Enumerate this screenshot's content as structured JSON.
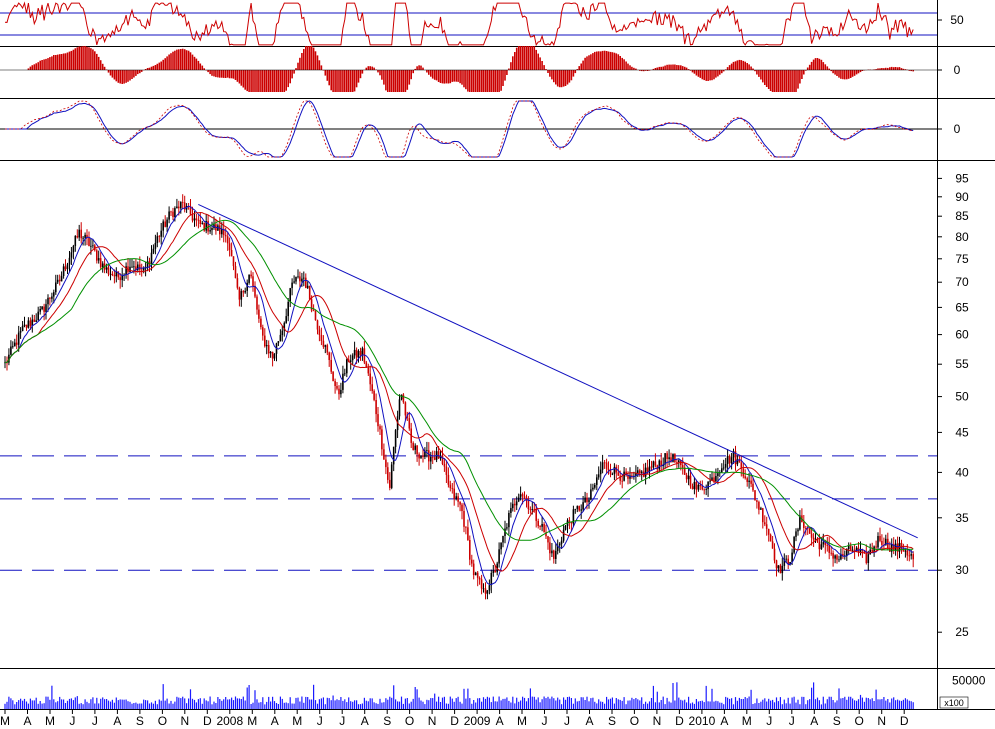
{
  "chart_data": {
    "type": "candlestick",
    "title": "",
    "x_labels": [
      "M",
      "A",
      "M",
      "J",
      "J",
      "A",
      "S",
      "O",
      "N",
      "D",
      "2008",
      "M",
      "A",
      "M",
      "J",
      "J",
      "A",
      "S",
      "O",
      "N",
      "D",
      "2009",
      "A",
      "M",
      "J",
      "J",
      "A",
      "S",
      "O",
      "N",
      "D",
      "2010",
      "A",
      "M",
      "J",
      "J",
      "A",
      "S",
      "O",
      "N",
      "D"
    ],
    "price_axis": {
      "scale": "log",
      "ticks": [
        25,
        30,
        35,
        40,
        45,
        50,
        55,
        60,
        65,
        70,
        75,
        80,
        85,
        90,
        95
      ],
      "range": [
        22.5,
        100
      ]
    },
    "oscillator_panels": [
      {
        "name": "",
        "ticks": [
          "50"
        ],
        "reference_lines": [
          60,
          40
        ],
        "range": [
          30,
          70
        ]
      },
      {
        "name": "",
        "ticks": [
          "0"
        ],
        "style": "histogram",
        "range": [
          -3,
          3
        ]
      },
      {
        "name": "",
        "ticks": [
          "0"
        ],
        "range": [
          -3,
          3
        ]
      }
    ],
    "volume_axis": {
      "ticks": [
        "50000"
      ],
      "multiplier_label": "x100",
      "range": [
        0,
        65000
      ]
    },
    "horizontal_levels": [
      42,
      37,
      30
    ],
    "trendline": {
      "from": {
        "label_index": 8.6,
        "price": 88
      },
      "to": {
        "label_index": 40.6,
        "price": 33
      }
    },
    "price_keypoints": [
      {
        "i": 0,
        "p": 55
      },
      {
        "i": 0.8,
        "p": 61
      },
      {
        "i": 1.6,
        "p": 64
      },
      {
        "i": 2.4,
        "p": 70
      },
      {
        "i": 3.3,
        "p": 81
      },
      {
        "i": 3.8,
        "p": 78
      },
      {
        "i": 4.4,
        "p": 73
      },
      {
        "i": 5.0,
        "p": 71
      },
      {
        "i": 5.6,
        "p": 74
      },
      {
        "i": 6.2,
        "p": 72
      },
      {
        "i": 6.8,
        "p": 80
      },
      {
        "i": 7.4,
        "p": 86
      },
      {
        "i": 7.9,
        "p": 88
      },
      {
        "i": 8.6,
        "p": 83
      },
      {
        "i": 9.4,
        "p": 82
      },
      {
        "i": 9.9,
        "p": 80
      },
      {
        "i": 10.4,
        "p": 66
      },
      {
        "i": 10.9,
        "p": 72
      },
      {
        "i": 11.4,
        "p": 60
      },
      {
        "i": 11.9,
        "p": 56
      },
      {
        "i": 12.4,
        "p": 62
      },
      {
        "i": 12.8,
        "p": 70
      },
      {
        "i": 13.3,
        "p": 71
      },
      {
        "i": 13.8,
        "p": 63
      },
      {
        "i": 14.3,
        "p": 57
      },
      {
        "i": 14.8,
        "p": 50
      },
      {
        "i": 15.3,
        "p": 56
      },
      {
        "i": 15.9,
        "p": 57
      },
      {
        "i": 16.5,
        "p": 48
      },
      {
        "i": 17.1,
        "p": 38
      },
      {
        "i": 17.6,
        "p": 51
      },
      {
        "i": 18.1,
        "p": 43
      },
      {
        "i": 18.6,
        "p": 42
      },
      {
        "i": 19.3,
        "p": 42
      },
      {
        "i": 19.8,
        "p": 38
      },
      {
        "i": 20.3,
        "p": 36
      },
      {
        "i": 20.8,
        "p": 30
      },
      {
        "i": 21.3,
        "p": 28
      },
      {
        "i": 21.8,
        "p": 30
      },
      {
        "i": 22.4,
        "p": 35
      },
      {
        "i": 22.9,
        "p": 38
      },
      {
        "i": 23.4,
        "p": 36
      },
      {
        "i": 23.9,
        "p": 34
      },
      {
        "i": 24.4,
        "p": 31
      },
      {
        "i": 24.9,
        "p": 34
      },
      {
        "i": 25.5,
        "p": 36
      },
      {
        "i": 26.0,
        "p": 37
      },
      {
        "i": 26.6,
        "p": 41
      },
      {
        "i": 27.2,
        "p": 40
      },
      {
        "i": 27.8,
        "p": 39
      },
      {
        "i": 28.4,
        "p": 40
      },
      {
        "i": 29.0,
        "p": 41
      },
      {
        "i": 29.6,
        "p": 42
      },
      {
        "i": 30.2,
        "p": 40
      },
      {
        "i": 30.8,
        "p": 38
      },
      {
        "i": 31.4,
        "p": 39
      },
      {
        "i": 31.9,
        "p": 41
      },
      {
        "i": 32.4,
        "p": 42
      },
      {
        "i": 32.9,
        "p": 40
      },
      {
        "i": 33.4,
        "p": 37
      },
      {
        "i": 33.9,
        "p": 34
      },
      {
        "i": 34.4,
        "p": 30
      },
      {
        "i": 34.9,
        "p": 31
      },
      {
        "i": 35.4,
        "p": 35
      },
      {
        "i": 35.9,
        "p": 33
      },
      {
        "i": 36.5,
        "p": 32
      },
      {
        "i": 37.1,
        "p": 31
      },
      {
        "i": 37.7,
        "p": 32
      },
      {
        "i": 38.3,
        "p": 31
      },
      {
        "i": 38.9,
        "p": 33
      },
      {
        "i": 39.5,
        "p": 32
      },
      {
        "i": 40.0,
        "p": 32
      },
      {
        "i": 40.4,
        "p": 31
      }
    ],
    "series": [
      {
        "role": "price-bars",
        "color": "#cc0000"
      },
      {
        "role": "moving-average-short",
        "color": "#0000cc"
      },
      {
        "role": "moving-average-mid",
        "color": "#cc0000"
      },
      {
        "role": "moving-average-long",
        "color": "#008800"
      }
    ],
    "colors": {
      "price": "#cc0000",
      "blue": "#1010c0",
      "green": "#009000",
      "volume": "#1a1aff",
      "grid": "#000000"
    }
  }
}
